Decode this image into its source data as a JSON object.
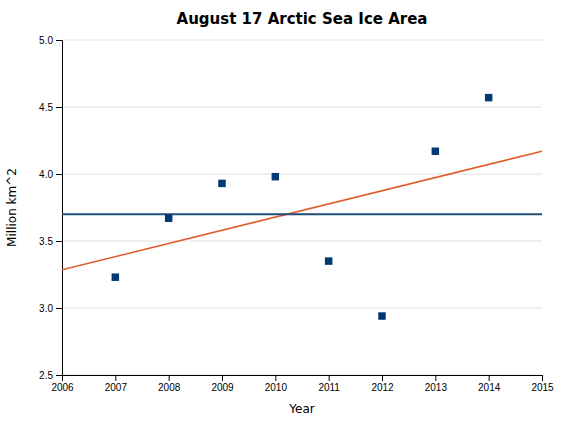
{
  "chart_data": {
    "type": "scatter",
    "title": "August 17 Arctic Sea Ice Area",
    "xlabel": "Year",
    "ylabel": "Million km^2",
    "xlim": [
      2006,
      2015
    ],
    "ylim": [
      2.5,
      5.0
    ],
    "xticks": [
      2006,
      2007,
      2008,
      2009,
      2010,
      2011,
      2012,
      2013,
      2014,
      2015
    ],
    "yticks": [
      2.5,
      {
        "value": 3.0,
        "label": "3.0"
      },
      3.5,
      {
        "value": 4.0,
        "label": "4.0"
      },
      4.5,
      {
        "value": 5.0,
        "label": "5.0"
      }
    ],
    "grid": true,
    "series": [
      {
        "type": "line",
        "color": "#E05C2A",
        "x": [
          2006,
          2015
        ],
        "values": [
          3.285,
          4.17
        ]
      },
      {
        "type": "hline",
        "color": "#1F4E79",
        "values": [
          3.7
        ]
      },
      {
        "type": "scatter",
        "color": "#003875",
        "marker": "square",
        "x": [
          2007,
          2008,
          2009,
          2010,
          2011,
          2012,
          2013,
          2014
        ],
        "values": [
          3.23,
          3.67,
          3.93,
          3.98,
          3.35,
          2.94,
          4.17,
          4.57
        ]
      }
    ]
  }
}
